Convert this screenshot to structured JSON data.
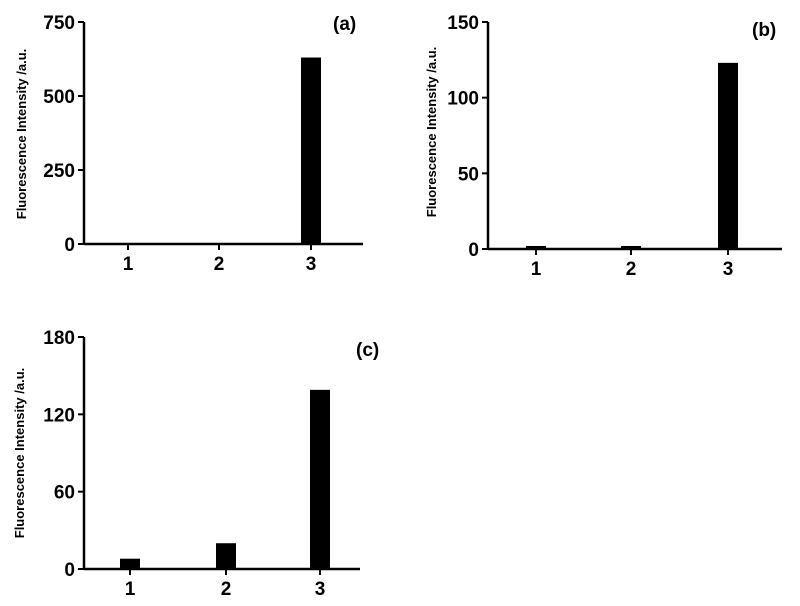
{
  "chart_data": [
    {
      "type": "bar",
      "panel_label": "(a)",
      "ylabel": "Fluorescence Intensity /a.u.",
      "categories": [
        "1",
        "2",
        "3"
      ],
      "values": [
        3,
        3,
        630
      ],
      "ylim": [
        0,
        750
      ],
      "yticks": [
        "0",
        "250",
        "500",
        "750"
      ],
      "grid": false
    },
    {
      "type": "bar",
      "panel_label": "(b)",
      "ylabel": "Fluorescence Intensity /a.u.",
      "categories": [
        "1",
        "2",
        "3"
      ],
      "values": [
        2,
        2,
        123
      ],
      "ylim": [
        0,
        150
      ],
      "yticks": [
        "0",
        "50",
        "100",
        "150"
      ],
      "grid": false
    },
    {
      "type": "bar",
      "panel_label": "(c)",
      "ylabel": "Fluorescence Intensity /a.u.",
      "categories": [
        "1",
        "2",
        "3"
      ],
      "values": [
        8,
        20,
        139
      ],
      "ylim": [
        0,
        180
      ],
      "yticks": [
        "0",
        "60",
        "120",
        "180"
      ],
      "grid": false
    }
  ]
}
